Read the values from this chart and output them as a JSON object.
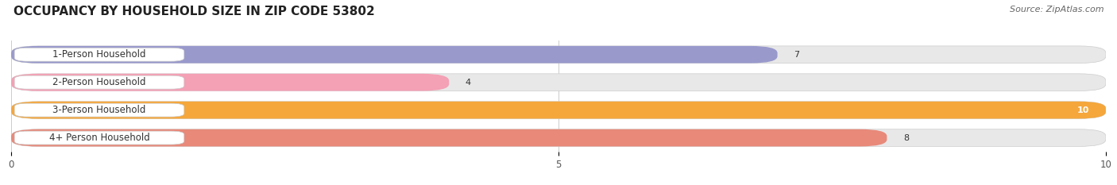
{
  "title": "OCCUPANCY BY HOUSEHOLD SIZE IN ZIP CODE 53802",
  "source": "Source: ZipAtlas.com",
  "categories": [
    "1-Person Household",
    "2-Person Household",
    "3-Person Household",
    "4+ Person Household"
  ],
  "values": [
    7,
    4,
    10,
    8
  ],
  "bar_colors": [
    "#9999cc",
    "#f4a0b5",
    "#f5a73b",
    "#e8897a"
  ],
  "bar_bg_color": "#e8e8e8",
  "xlim": [
    0,
    10
  ],
  "xticks": [
    0,
    5,
    10
  ],
  "background_color": "#ffffff",
  "title_fontsize": 11,
  "label_fontsize": 8.5,
  "value_fontsize": 8,
  "source_fontsize": 8
}
